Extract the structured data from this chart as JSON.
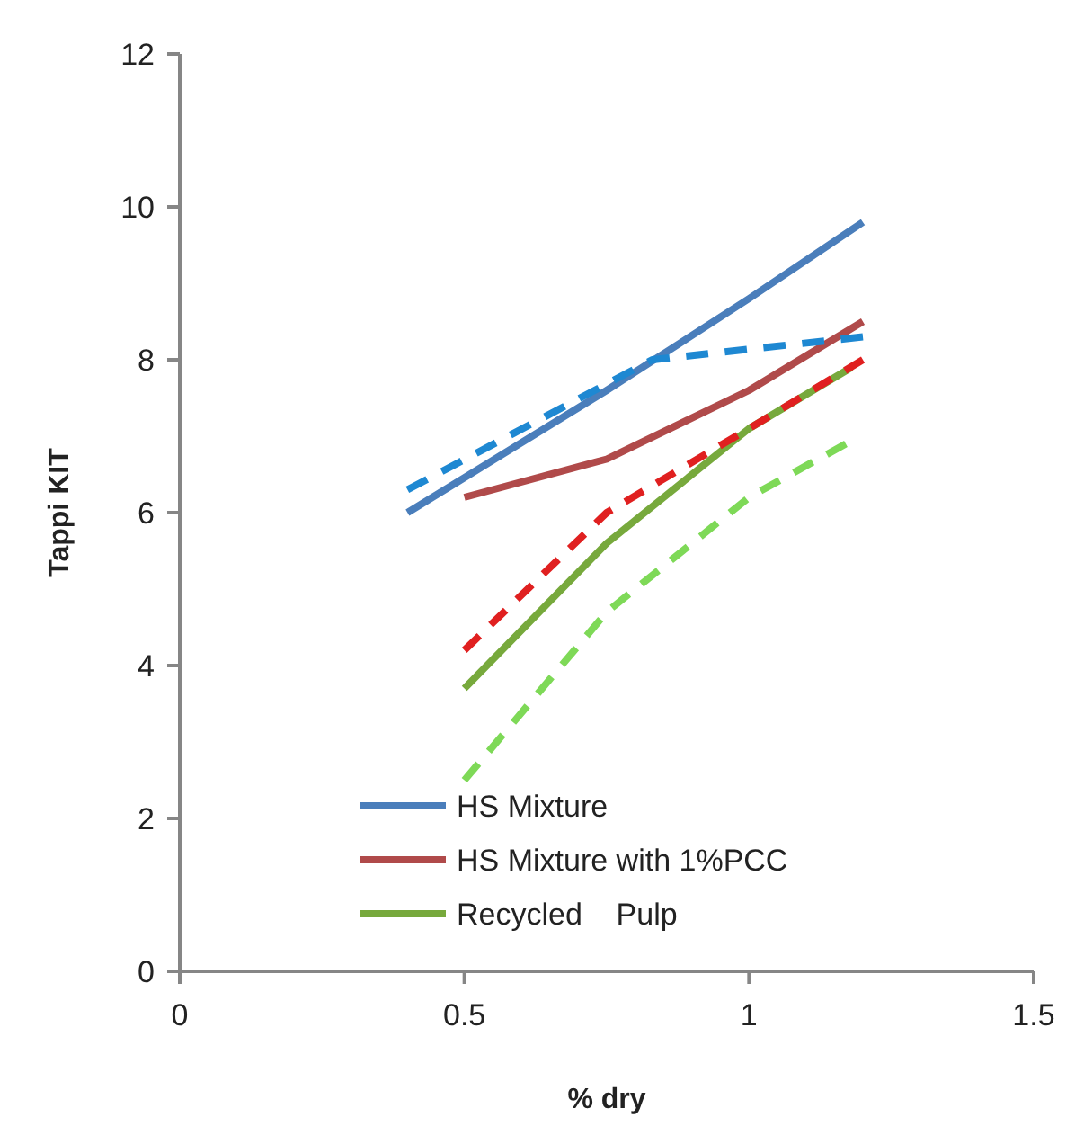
{
  "chart_data": {
    "type": "line",
    "xlabel": "% dry",
    "ylabel": "Tappi KIT",
    "xlim": [
      0,
      1.5
    ],
    "xticks": [
      0,
      0.5,
      1,
      1.5
    ],
    "ylim": [
      0,
      12
    ],
    "yticks": [
      0,
      2,
      4,
      6,
      8,
      10,
      12
    ],
    "grid": false,
    "legend": "bottom left",
    "series": [
      {
        "name": "HS Mixture",
        "color": "#4a7ebb",
        "line_style": "solid",
        "x": [
          0.4,
          0.75,
          1.0,
          1.2
        ],
        "values": [
          6.0,
          7.6,
          8.8,
          9.8
        ]
      },
      {
        "name": "HS Mixture with 1%PCC",
        "color": "#b04a4a",
        "line_style": "solid",
        "x": [
          0.5,
          0.75,
          1.0,
          1.2
        ],
        "values": [
          6.2,
          6.7,
          7.6,
          8.5
        ]
      },
      {
        "name": "Recycled    Pulp",
        "color": "#77a93c",
        "line_style": "solid",
        "x": [
          0.5,
          0.75,
          1.0,
          1.18
        ],
        "values": [
          3.7,
          5.6,
          7.1,
          7.9
        ]
      },
      {
        "color": "#1e88d2",
        "line_style": "dashed",
        "x": [
          0.4,
          0.83,
          1.2
        ],
        "values": [
          6.3,
          8.0,
          8.3
        ]
      },
      {
        "color": "#e02020",
        "line_style": "dashed",
        "x": [
          0.5,
          0.75,
          1.0,
          1.2
        ],
        "values": [
          4.2,
          6.0,
          7.1,
          8.0
        ]
      },
      {
        "color": "#7ed957",
        "line_style": "dashed",
        "x": [
          0.5,
          0.75,
          1.0,
          1.17
        ],
        "values": [
          2.5,
          4.7,
          6.2,
          6.9
        ]
      }
    ]
  }
}
